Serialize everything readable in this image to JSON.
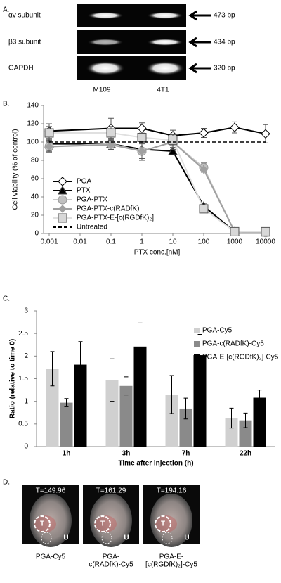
{
  "panel_labels": [
    "A.",
    "B.",
    "C.",
    "D."
  ],
  "gel": {
    "rows": [
      {
        "label": "αv subunit",
        "size": "473 bp"
      },
      {
        "label": "β3 subunit",
        "size": "434 bp"
      },
      {
        "label": "GAPDH",
        "size": "320 bp"
      }
    ],
    "lanes": [
      "M109",
      "4T1"
    ]
  },
  "chart_data": [
    {
      "type": "line",
      "log_x": true,
      "x": [
        0.001,
        0.1,
        1,
        10,
        100,
        1000,
        10000
      ],
      "xlim": [
        0.001,
        10000
      ],
      "xticks": [
        0.001,
        0.01,
        0.1,
        1,
        10,
        100,
        1000,
        10000
      ],
      "ylim": [
        0,
        140
      ],
      "yticks": [
        0,
        20,
        40,
        60,
        80,
        100,
        120,
        140
      ],
      "x_label": "PTX conc.[nM]",
      "y_label": "Cell viability (% of control)",
      "series": [
        {
          "name": "PGA",
          "color": "#000000",
          "fill": "#ffffff",
          "marker": "diamond",
          "dashed": false,
          "values": [
            112,
            115,
            115,
            107,
            110,
            116,
            109
          ],
          "errors": [
            8,
            11,
            6,
            6,
            5,
            6,
            10
          ]
        },
        {
          "name": "PTX",
          "color": "#000000",
          "fill": "#000000",
          "marker": "triangle",
          "dashed": false,
          "values": [
            98,
            98,
            92,
            90,
            30,
            2,
            1
          ],
          "errors": [
            4,
            4,
            10,
            4,
            3,
            1,
            1
          ]
        },
        {
          "name": "PGA-PTX",
          "color": "#c8c8c8",
          "fill": "#c0c0c0",
          "marker": "circle",
          "dashed": false,
          "values": [
            95,
            98,
            90,
            100,
            72,
            2,
            1
          ],
          "errors": [
            6,
            6,
            10,
            8,
            5,
            1,
            1
          ]
        },
        {
          "name": "PGA-PTX-c(RADfK)",
          "color": "#a0a0a0",
          "fill": "#a0a0a0",
          "marker": "small-diamond",
          "dashed": false,
          "values": [
            95,
            97,
            90,
            100,
            70,
            2,
            1
          ],
          "errors": [
            5,
            5,
            8,
            6,
            5,
            1,
            1
          ]
        },
        {
          "name": "PGA-PTX-E-[c(RGDfK)₂]",
          "color": "#e0e0e0",
          "fill": "#d8d8d8",
          "marker": "square",
          "dashed": false,
          "values": [
            110,
            110,
            105,
            102,
            27,
            2,
            2
          ],
          "errors": [
            7,
            7,
            6,
            6,
            3,
            1,
            1
          ]
        },
        {
          "name": "Untreated",
          "color": "#000000",
          "fill": "none",
          "marker": "none",
          "dashed": true,
          "values": [
            100,
            100,
            100,
            100,
            100,
            100,
            100
          ]
        }
      ]
    },
    {
      "type": "bar",
      "categories": [
        "1h",
        "3h",
        "7h",
        "22h"
      ],
      "ylim": [
        0,
        3
      ],
      "yticks": [
        0,
        0.5,
        1,
        1.5,
        2,
        2.5,
        3
      ],
      "x_label": "Time after injection (h)",
      "y_label": "Ratio (relative to time 0)",
      "series": [
        {
          "name": "PGA-Cy5",
          "color": "#d0d0d0",
          "values": [
            1.72,
            1.47,
            1.15,
            0.63
          ],
          "errors": [
            0.38,
            0.47,
            0.42,
            0.22
          ]
        },
        {
          "name": "PGA-c(RADfK)-Cy5",
          "color": "#8a8a8a",
          "values": [
            0.97,
            1.34,
            0.84,
            0.58
          ],
          "errors": [
            0.09,
            0.2,
            0.23,
            0.16
          ]
        },
        {
          "name": "PGA-E-[c(RGDfK)₂]-Cy5",
          "color": "#000000",
          "values": [
            1.81,
            2.21,
            2.02,
            1.08
          ],
          "errors": [
            0.51,
            0.52,
            0.46,
            0.17
          ]
        }
      ]
    }
  ],
  "images": {
    "tumor": "T",
    "urine": "U",
    "items": [
      {
        "time": "T=149.96",
        "caption": [
          "PGA-Cy5"
        ]
      },
      {
        "time": "T=161.29",
        "caption": [
          "PGA-",
          "c(RADfK)-Cy5"
        ]
      },
      {
        "time": "T=194.16",
        "caption": [
          "PGA-E-",
          "[c(RGDfK)₂]-Cy5"
        ]
      }
    ]
  }
}
